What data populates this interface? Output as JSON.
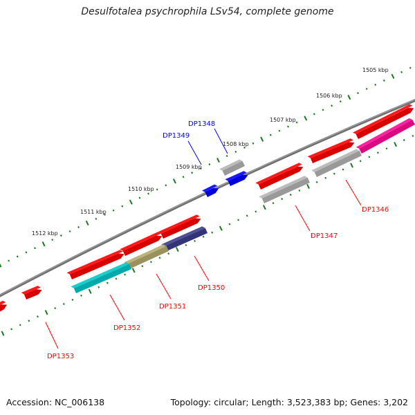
{
  "title": "Desulfotalea psychrophila LSv54, complete genome",
  "footer": {
    "accession": "Accession: NC_006138",
    "summary": "Topology: circular; Length: 3,523,383 bp; Genes: 3,202"
  },
  "colors": {
    "red": "#ff0000",
    "blue": "#0000ff",
    "gray": "#b4b4b4",
    "magenta": "#ff0a96",
    "cyan": "#00c8c8",
    "khaki": "#b4aa6e",
    "navy": "#3c3c8c",
    "backbone": "#777777",
    "tick": "#1a7a1a"
  },
  "scale_labels": [
    "1505 kbp",
    "1506 kbp",
    "1507 kbp",
    "1508 kbp",
    "1509 kbp",
    "1510 kbp",
    "1511 kbp",
    "1512 kbp"
  ],
  "gene_labels": [
    {
      "name": "DP1346",
      "color": "red"
    },
    {
      "name": "DP1347",
      "color": "red"
    },
    {
      "name": "DP1348",
      "color": "blue"
    },
    {
      "name": "DP1349",
      "color": "blue"
    },
    {
      "name": "DP1350",
      "color": "red"
    },
    {
      "name": "DP1351",
      "color": "red"
    },
    {
      "name": "DP1352",
      "color": "red"
    },
    {
      "name": "DP1353",
      "color": "red"
    }
  ]
}
